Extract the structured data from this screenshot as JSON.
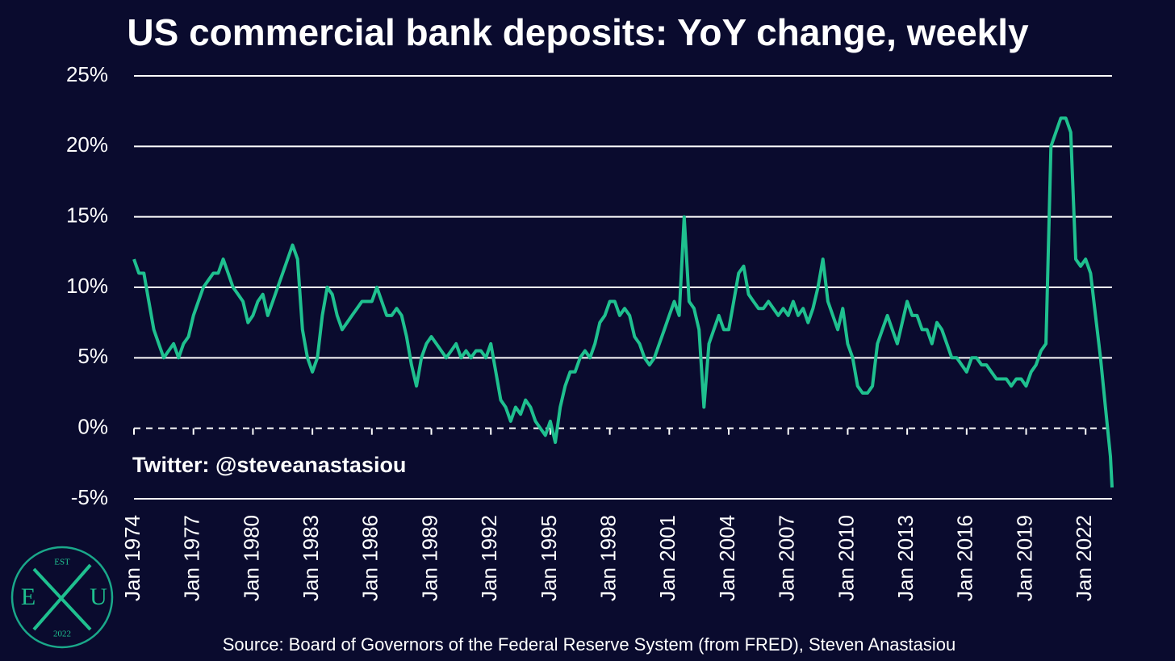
{
  "chart_data": {
    "type": "line",
    "title": "US commercial bank deposits: YoY change, weekly",
    "annotation": "Twitter: @steveanastasiou",
    "source": "Source: Board of Governors of the Federal Reserve System (from FRED), Steven Anastasiou",
    "x": [
      "Jan 1974",
      "Apr 1974",
      "Jul 1974",
      "Oct 1974",
      "Jan 1975",
      "Apr 1975",
      "Jul 1975",
      "Oct 1975",
      "Jan 1976",
      "Apr 1976",
      "Jul 1976",
      "Oct 1976",
      "Jan 1977",
      "Apr 1977",
      "Jul 1977",
      "Oct 1977",
      "Jan 1978",
      "Apr 1978",
      "Jul 1978",
      "Oct 1978",
      "Jan 1979",
      "Apr 1979",
      "Jul 1979",
      "Oct 1979",
      "Jan 1980",
      "Apr 1980",
      "Jul 1980",
      "Oct 1980",
      "Jan 1981",
      "Apr 1981",
      "Jul 1981",
      "Oct 1981",
      "Jan 1982",
      "Apr 1982",
      "Jul 1982",
      "Oct 1982",
      "Jan 1983",
      "Apr 1983",
      "Jul 1983",
      "Oct 1983",
      "Jan 1984",
      "Apr 1984",
      "Jul 1984",
      "Oct 1984",
      "Jan 1985",
      "Apr 1985",
      "Jul 1985",
      "Oct 1985",
      "Jan 1986",
      "Apr 1986",
      "Jul 1986",
      "Oct 1986",
      "Jan 1987",
      "Apr 1987",
      "Jul 1987",
      "Oct 1987",
      "Jan 1988",
      "Apr 1988",
      "Jul 1988",
      "Oct 1988",
      "Jan 1989",
      "Apr 1989",
      "Jul 1989",
      "Oct 1989",
      "Jan 1990",
      "Apr 1990",
      "Jul 1990",
      "Oct 1990",
      "Jan 1991",
      "Apr 1991",
      "Jul 1991",
      "Oct 1991",
      "Jan 1992",
      "Apr 1992",
      "Jul 1992",
      "Oct 1992",
      "Jan 1993",
      "Apr 1993",
      "Jul 1993",
      "Oct 1993",
      "Jan 1994",
      "Apr 1994",
      "Jul 1994",
      "Oct 1994",
      "Jan 1995",
      "Apr 1995",
      "Jul 1995",
      "Oct 1995",
      "Jan 1996",
      "Apr 1996",
      "Jul 1996",
      "Oct 1996",
      "Jan 1997",
      "Apr 1997",
      "Jul 1997",
      "Oct 1997",
      "Jan 1998",
      "Apr 1998",
      "Jul 1998",
      "Oct 1998",
      "Jan 1999",
      "Apr 1999",
      "Jul 1999",
      "Oct 1999",
      "Jan 2000",
      "Apr 2000",
      "Jul 2000",
      "Oct 2000",
      "Jan 2001",
      "Apr 2001",
      "Jul 2001",
      "Oct 2001",
      "Jan 2002",
      "Apr 2002",
      "Jul 2002",
      "Oct 2002",
      "Jan 2003",
      "Apr 2003",
      "Jul 2003",
      "Oct 2003",
      "Jan 2004",
      "Apr 2004",
      "Jul 2004",
      "Oct 2004",
      "Jan 2005",
      "Apr 2005",
      "Jul 2005",
      "Oct 2005",
      "Jan 2006",
      "Apr 2006",
      "Jul 2006",
      "Oct 2006",
      "Jan 2007",
      "Apr 2007",
      "Jul 2007",
      "Oct 2007",
      "Jan 2008",
      "Apr 2008",
      "Jul 2008",
      "Oct 2008",
      "Jan 2009",
      "Apr 2009",
      "Jul 2009",
      "Oct 2009",
      "Jan 2010",
      "Apr 2010",
      "Jul 2010",
      "Oct 2010",
      "Jan 2011",
      "Apr 2011",
      "Jul 2011",
      "Oct 2011",
      "Jan 2012",
      "Apr 2012",
      "Jul 2012",
      "Oct 2012",
      "Jan 2013",
      "Apr 2013",
      "Jul 2013",
      "Oct 2013",
      "Jan 2014",
      "Apr 2014",
      "Jul 2014",
      "Oct 2014",
      "Jan 2015",
      "Apr 2015",
      "Jul 2015",
      "Oct 2015",
      "Jan 2016",
      "Apr 2016",
      "Jul 2016",
      "Oct 2016",
      "Jan 2017",
      "Apr 2017",
      "Jul 2017",
      "Oct 2017",
      "Jan 2018",
      "Apr 2018",
      "Jul 2018",
      "Oct 2018",
      "Jan 2019",
      "Apr 2019",
      "Jul 2019",
      "Oct 2019",
      "Jan 2020",
      "Apr 2020",
      "Jul 2020",
      "Oct 2020",
      "Jan 2021",
      "Apr 2021",
      "Jul 2021",
      "Oct 2021",
      "Jan 2022",
      "Apr 2022",
      "Jul 2022",
      "Oct 2022",
      "Jan 2023",
      "Apr 2023",
      "May 2023"
    ],
    "series": [
      {
        "color": "#1fc08f",
        "values": [
          12,
          11,
          11,
          9,
          7,
          6,
          5,
          5.5,
          6,
          5,
          6,
          6.5,
          8,
          9,
          10,
          10.5,
          11,
          11,
          12,
          11,
          10,
          9.5,
          9,
          7.5,
          8,
          9,
          9.5,
          8,
          9,
          10,
          11,
          12,
          13,
          12,
          7,
          5,
          4,
          5,
          8,
          10,
          9.5,
          8,
          7,
          7.5,
          8,
          8.5,
          9,
          9,
          9,
          10,
          9,
          8,
          8,
          8.5,
          8,
          6.5,
          4.5,
          3,
          5,
          6,
          6.5,
          6,
          5.5,
          5,
          5.5,
          6,
          5,
          5.5,
          5,
          5.5,
          5.5,
          5,
          6,
          4,
          2,
          1.5,
          0.5,
          1.5,
          1,
          2,
          1.5,
          0.5,
          0,
          -0.5,
          0.5,
          -1,
          1.5,
          3,
          4,
          4,
          5,
          5.5,
          5,
          6,
          7.5,
          8,
          9,
          9,
          8,
          8.5,
          8,
          6.5,
          6,
          5,
          4.5,
          5,
          6,
          7,
          8,
          9,
          8,
          15,
          9,
          8.5,
          7,
          1.5,
          6,
          7,
          8,
          7,
          7,
          9,
          11,
          11.5,
          9.5,
          9,
          8.5,
          8.5,
          9,
          8.5,
          8,
          8.5,
          8,
          9,
          8,
          8.5,
          7.5,
          8.5,
          10,
          12,
          9,
          8,
          7,
          8.5,
          6,
          5,
          3,
          2.5,
          2.5,
          3,
          6,
          7,
          8,
          7,
          6,
          7.5,
          9,
          8,
          8,
          7,
          7,
          6,
          7.5,
          7,
          6,
          5,
          5,
          4.5,
          4,
          5,
          5,
          4.5,
          4.5,
          4,
          3.5,
          3.5,
          3.5,
          3,
          3.5,
          3.5,
          3,
          4,
          4.5,
          5.5,
          6,
          20,
          21,
          22,
          22,
          21,
          12,
          11.5,
          12,
          11,
          8,
          5,
          1.5,
          -2,
          -4.2
        ]
      }
    ],
    "xlim": [
      "Jan 1974",
      "May 2023"
    ],
    "xticks": [
      "Jan 1974",
      "Jan 1977",
      "Jan 1980",
      "Jan 1983",
      "Jan 1986",
      "Jan 1989",
      "Jan 1992",
      "Jan 1995",
      "Jan 1998",
      "Jan 2001",
      "Jan 2004",
      "Jan 2007",
      "Jan 2010",
      "Jan 2013",
      "Jan 2016",
      "Jan 2019",
      "Jan 2022"
    ],
    "ylim": [
      -5,
      25
    ],
    "yticks": [
      {
        "value": -5,
        "label": "-5%"
      },
      {
        "value": 0,
        "label": "0%"
      },
      {
        "value": 5,
        "label": "5%"
      },
      {
        "value": 10,
        "label": "10%"
      },
      {
        "value": 15,
        "label": "15%"
      },
      {
        "value": 20,
        "label": "20%"
      },
      {
        "value": 25,
        "label": "25%"
      }
    ],
    "grid": true
  },
  "logo": {
    "top": "EST",
    "left": "E",
    "right": "U",
    "bottom": "2022"
  }
}
